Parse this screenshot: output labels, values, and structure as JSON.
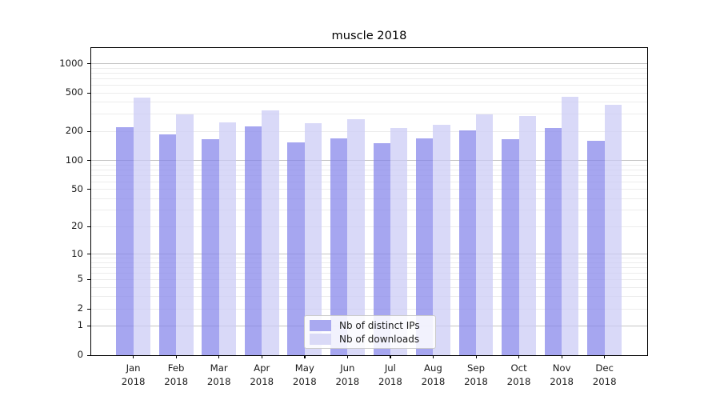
{
  "title": "muscle 2018",
  "chart_data": {
    "type": "bar",
    "title": "muscle 2018",
    "categories": [
      "Jan",
      "Feb",
      "Mar",
      "Apr",
      "May",
      "Jun",
      "Jul",
      "Aug",
      "Sep",
      "Oct",
      "Nov",
      "Dec"
    ],
    "category_year": "2018",
    "series": [
      {
        "name": "Nb of distinct IPs",
        "values": [
          220,
          185,
          165,
          225,
          155,
          170,
          150,
          170,
          205,
          165,
          215,
          160
        ]
      },
      {
        "name": "Nb of downloads",
        "values": [
          445,
          300,
          250,
          330,
          245,
          270,
          215,
          235,
          300,
          290,
          455,
          380
        ]
      }
    ],
    "yticks": [
      0,
      1,
      2,
      5,
      10,
      20,
      50,
      100,
      200,
      500,
      1000
    ],
    "xlabel": "",
    "ylabel": "",
    "yscale": "log10(1+v)",
    "ymax": 1450,
    "grid": "both",
    "legend": {
      "labels": [
        "Nb of distinct IPs",
        "Nb of downloads"
      ],
      "position": "lower center"
    }
  },
  "colors": {
    "bar_ips": "#8383ea",
    "bar_downloads": "#cbcbf5",
    "bar_alpha": "0.72",
    "legend_swatch_ips": "#a9a9f0",
    "legend_swatch_downloads": "#dadaf7",
    "grid_major": "#c3c3c3",
    "grid_minor": "#ebebeb",
    "axis": "#000000",
    "text": "#1a1a1a"
  }
}
